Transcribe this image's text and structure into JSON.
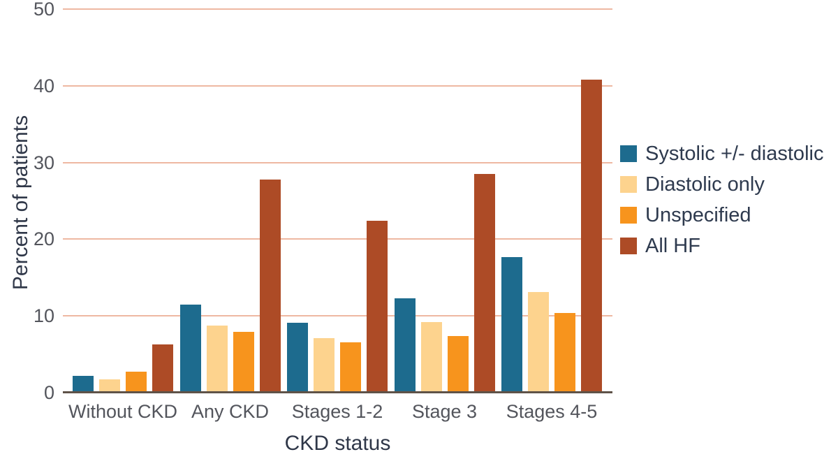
{
  "chart_data": {
    "type": "bar",
    "title": "",
    "xlabel": "CKD status",
    "ylabel": "Percent of patients",
    "categories": [
      "Without CKD",
      "Any CKD",
      "Stages 1-2",
      "Stage 3",
      "Stages 4-5"
    ],
    "series": [
      {
        "name": "Systolic +/- diastolic",
        "color": "#1d6b8e",
        "values": [
          2.2,
          11.5,
          9.1,
          12.3,
          17.7
        ]
      },
      {
        "name": "Diastolic only",
        "color": "#fdd38e",
        "values": [
          1.7,
          8.7,
          7.1,
          9.2,
          13.1
        ]
      },
      {
        "name": "Unspecified",
        "color": "#f7941d",
        "values": [
          2.7,
          7.9,
          6.6,
          7.4,
          10.4
        ]
      },
      {
        "name": "All HF",
        "color": "#ad4b26",
        "values": [
          6.3,
          27.8,
          22.4,
          28.5,
          40.8
        ]
      }
    ],
    "ylim": [
      0,
      50
    ],
    "yticks": [
      0,
      10,
      20,
      30,
      40,
      50
    ],
    "grid": true,
    "legend_position": "right",
    "palette": {
      "gridline_color": "#eeb8a2",
      "axis_line_color": "#5f5348",
      "tick_text_color": "#53555c",
      "title_text_color": "#2f3748",
      "legend_text_color": "#2e3a4e",
      "background_color": "#ffffff"
    }
  }
}
